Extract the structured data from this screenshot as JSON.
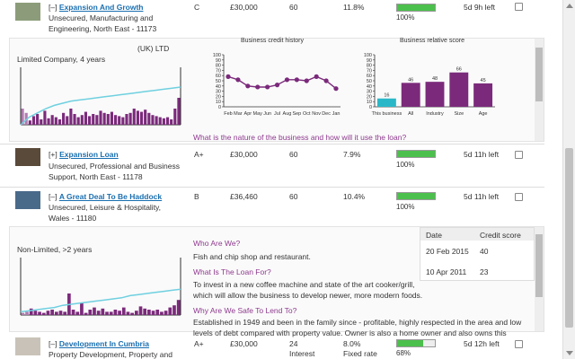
{
  "loans": [
    {
      "toggle": "[–]",
      "title": "Expansion And Growth",
      "desc": "Unsecured, Manufacturing and Engineering, North East - 11173",
      "rating": "C",
      "amount": "£30,000",
      "term": "60",
      "rate": "11.8%",
      "progress": 100,
      "progress_label": "100%",
      "time_left": "5d 9h left"
    },
    {
      "toggle": "[+]",
      "title": "Expansion Loan",
      "desc": "Unsecured, Professional and Business Support, North East - 11178",
      "rating": "A+",
      "amount": "£30,000",
      "term": "60",
      "rate": "7.9%",
      "progress": 100,
      "progress_label": "100%",
      "time_left": "5d 11h left"
    },
    {
      "toggle": "[–]",
      "title": "A Great Deal To Be Haddock",
      "desc": "Unsecured, Leisure & Hospitality, Wales - 11180",
      "rating": "B",
      "amount": "£36,460",
      "term": "60",
      "rate": "10.4%",
      "progress": 100,
      "progress_label": "100%",
      "time_left": "5d 11h left"
    },
    {
      "toggle": "[–]",
      "title": "Development In Cumbria",
      "desc": "Property Development, Property and",
      "rating": "A+",
      "amount": "£30,000",
      "term": "24",
      "term_sub": "Interest",
      "rate": "8.0%",
      "rate_sub": "Fixed rate",
      "progress": 68,
      "progress_label": "68%",
      "time_left": "5d 12h left"
    }
  ],
  "detail1": {
    "company_partial": "(UK) LTD",
    "company_type": "Limited Company, 4 years",
    "question": "What is the nature of the business and how will it use the loan?",
    "credit_history": {
      "title": "Business credit history",
      "months": [
        "Feb",
        "Mar",
        "Apr",
        "May",
        "Jun",
        "Jul",
        "Aug",
        "Sep",
        "Oct",
        "Nov",
        "Dec",
        "Jan"
      ],
      "values": [
        58,
        52,
        40,
        38,
        38,
        42,
        52,
        52,
        50,
        58,
        50,
        35
      ],
      "yticks": [
        0,
        10,
        20,
        30,
        40,
        50,
        60,
        70,
        80,
        90,
        100
      ]
    },
    "relative_score": {
      "title": "Business relative score",
      "categories": [
        "This business",
        "All",
        "Industry",
        "Size",
        "Age"
      ],
      "values": [
        16,
        46,
        48,
        66,
        45
      ],
      "yticks": [
        0,
        10,
        20,
        30,
        40,
        50,
        60,
        70,
        80,
        90,
        100
      ]
    }
  },
  "detail2": {
    "company_type": "Non-Limited, >2 years",
    "q1": "Who Are We?",
    "a1": "Fish and chip shop and restaurant.",
    "q2": "What Is The Loan For?",
    "a2": "To invest in a new coffee machine and state of the art cooker/grill, which will allow the business to develop newer, more modern foods.",
    "q3": "Why Are We Safe To Lend To?",
    "a3": "Established in 1949 and been in the family since - profitable, highly respected in the area and low levels of debt compared with property value. Owner is also a home owner and also owns this",
    "table": {
      "col_date": "Date",
      "col_score": "Credit score",
      "rows": [
        {
          "date": "20 Feb 2015",
          "score": "40"
        },
        {
          "date": "10 Apr 2011",
          "score": "23"
        }
      ]
    }
  },
  "colors": {
    "link": "#1a6fb0",
    "question": "#8e3a8e",
    "bar_purple": "#7b2a7b",
    "bar_cyan": "#2ab8c8",
    "progress": "#4cc04c"
  }
}
